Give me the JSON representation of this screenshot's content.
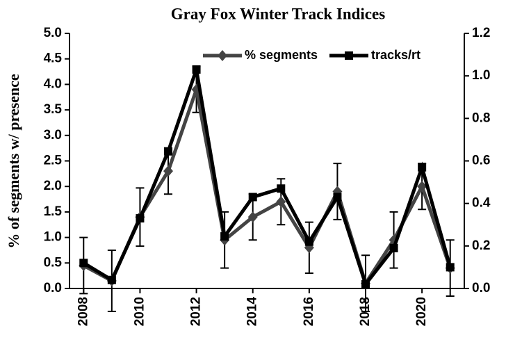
{
  "chart_data": {
    "type": "line",
    "title": "Gray Fox Winter Track Indices",
    "y_label": "% of segments w/ presence",
    "x": [
      2008,
      2009,
      2010,
      2011,
      2012,
      2013,
      2014,
      2015,
      2016,
      2017,
      2018,
      2019,
      2020,
      2021
    ],
    "xlim": [
      2007.5,
      2021.5
    ],
    "xticks": [
      2008,
      2010,
      2012,
      2014,
      2016,
      2018,
      2020
    ],
    "ylim": [
      0,
      5
    ],
    "yticks": [
      {
        "value": 0,
        "label": "0.0"
      },
      {
        "value": 0.5,
        "label": "0.5"
      },
      {
        "value": 1,
        "label": "1.0"
      },
      {
        "value": 1.5,
        "label": "1.5"
      },
      {
        "value": 2,
        "label": "2.0"
      },
      {
        "value": 2.5,
        "label": "2.5"
      },
      {
        "value": 3,
        "label": "3.0"
      },
      {
        "value": 3.5,
        "label": "3.5"
      },
      {
        "value": 4,
        "label": "4.0"
      },
      {
        "value": 4.5,
        "label": "4.5"
      },
      {
        "value": 5,
        "label": "5.0"
      }
    ],
    "y2lim": [
      0,
      1.2
    ],
    "y2ticks": [
      {
        "value": 0,
        "label": "0.0"
      },
      {
        "value": 0.2,
        "label": "0.2"
      },
      {
        "value": 0.4,
        "label": "0.4"
      },
      {
        "value": 0.6,
        "label": "0.6"
      },
      {
        "value": 0.8,
        "label": "0.8"
      },
      {
        "value": 1,
        "label": "1.0"
      },
      {
        "value": 1.2,
        "label": "1.2"
      }
    ],
    "series": [
      {
        "name": "% segments",
        "color": "#444444",
        "marker": "diamond",
        "values": [
          0.45,
          0.15,
          1.4,
          2.3,
          3.9,
          0.95,
          1.4,
          1.7,
          0.8,
          1.9,
          0.1,
          0.95,
          2.0,
          0.4
        ],
        "errors": [
          0.55,
          0.6,
          0.57,
          0.45,
          0.45,
          0.55,
          0.45,
          0.45,
          0.5,
          0.55,
          0.55,
          0.55,
          0.45,
          0.55
        ]
      },
      {
        "name": "tracks/rt",
        "color": "#000000",
        "marker": "square",
        "axis": "y2",
        "values": [
          0.12,
          0.04,
          0.33,
          0.645,
          1.03,
          0.245,
          0.43,
          0.47,
          0.22,
          0.43,
          0.02,
          0.19,
          0.57,
          0.1
        ]
      }
    ]
  }
}
